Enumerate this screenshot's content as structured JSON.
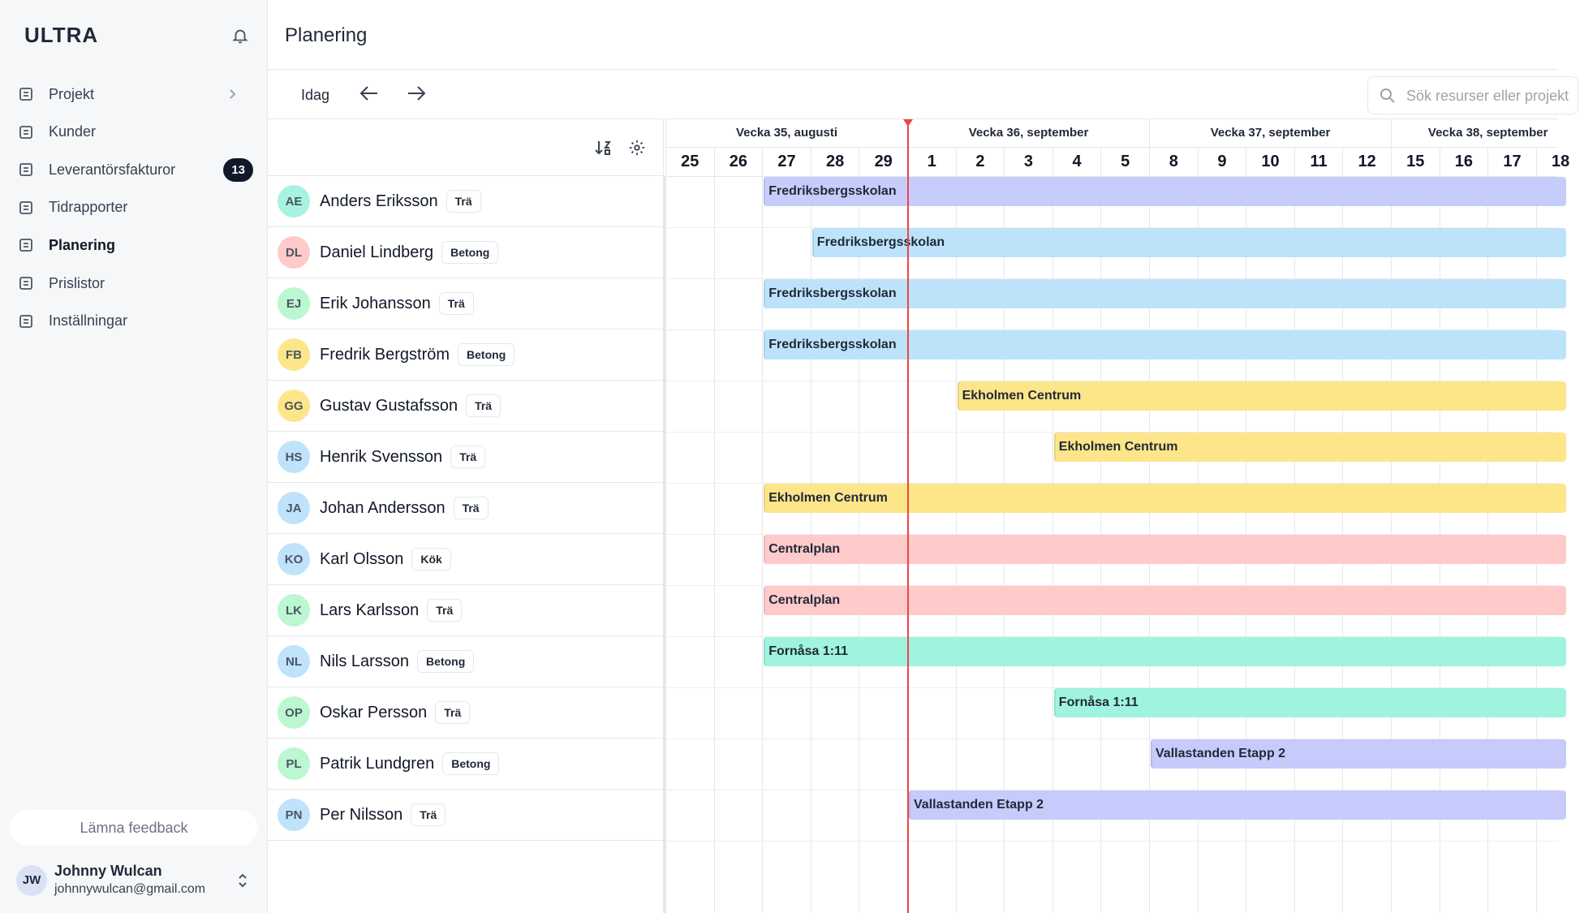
{
  "sidebar": {
    "logo": "ULTRA",
    "nav": [
      {
        "label": "Projekt"
      },
      {
        "label": "Kunder"
      },
      {
        "label": "Leverantörsfakturor",
        "badge": 13
      },
      {
        "label": "Tidrapporter"
      },
      {
        "label": "Planering",
        "active": true
      },
      {
        "label": "Prislistor"
      },
      {
        "label": "Inställningar"
      }
    ],
    "feedback": "Lämna feedback",
    "user": {
      "initials": "JW",
      "name": "Johnny Wulcan",
      "email": "johnnywulcan@gmail.com"
    }
  },
  "header": {
    "title": "Planering"
  },
  "toolbar": {
    "today": "Idag",
    "search_placeholder": "Sök resurser eller projekt"
  },
  "timeline": {
    "today": 1,
    "weeks": [
      {
        "label": "Vecka 35, augusti",
        "days": [
          25,
          26,
          27,
          28,
          29
        ]
      },
      {
        "label": "Vecka 36, september",
        "days": [
          1,
          2,
          3,
          4,
          5
        ]
      },
      {
        "label": "Vecka 37, september",
        "days": [
          8,
          9,
          10,
          11,
          12
        ]
      },
      {
        "label": "Vecka 38, september",
        "days": [
          15,
          16,
          17,
          18
        ]
      }
    ]
  },
  "resources": [
    {
      "initials": "AE",
      "name": "Anders Eriksson",
      "tag": "Trä",
      "avatar_color": "#a7f3e0",
      "booking": {
        "project": "Fredriksbergsskolan",
        "start": 27,
        "color": "#c7cdfa"
      }
    },
    {
      "initials": "DL",
      "name": "Daniel Lindberg",
      "tag": "Betong",
      "avatar_color": "#fecaca",
      "booking": {
        "project": "Fredriksbergsskolan",
        "start": 28,
        "color": "#bde3fb"
      }
    },
    {
      "initials": "EJ",
      "name": "Erik Johansson",
      "tag": "Trä",
      "avatar_color": "#bbf7d0",
      "booking": {
        "project": "Fredriksbergsskolan",
        "start": 27,
        "color": "#bde3fb"
      }
    },
    {
      "initials": "FB",
      "name": "Fredrik Bergström",
      "tag": "Betong",
      "avatar_color": "#fde68a",
      "booking": {
        "project": "Fredriksbergsskolan",
        "start": 27,
        "color": "#bde3fb"
      }
    },
    {
      "initials": "GG",
      "name": "Gustav Gustafsson",
      "tag": "Trä",
      "avatar_color": "#fde68a",
      "booking": {
        "project": "Ekholmen Centrum",
        "start": 2,
        "color": "#fde58a"
      }
    },
    {
      "initials": "HS",
      "name": "Henrik Svensson",
      "tag": "Trä",
      "avatar_color": "#bfe3fb",
      "booking": {
        "project": "Ekholmen Centrum",
        "start": 4,
        "color": "#fde58a"
      }
    },
    {
      "initials": "JA",
      "name": "Johan Andersson",
      "tag": "Trä",
      "avatar_color": "#bfe3fb",
      "booking": {
        "project": "Ekholmen Centrum",
        "start": 27,
        "color": "#fde58a"
      }
    },
    {
      "initials": "KO",
      "name": "Karl Olsson",
      "tag": "Kök",
      "avatar_color": "#bfe3fb",
      "booking": {
        "project": "Centralplan",
        "start": 27,
        "color": "#fecaca"
      }
    },
    {
      "initials": "LK",
      "name": "Lars Karlsson",
      "tag": "Trä",
      "avatar_color": "#bbf7d0",
      "booking": {
        "project": "Centralplan",
        "start": 27,
        "color": "#fecaca"
      }
    },
    {
      "initials": "NL",
      "name": "Nils Larsson",
      "tag": "Betong",
      "avatar_color": "#bfe3fb",
      "booking": {
        "project": "Fornåsa 1:11",
        "start": 27,
        "color": "#9ff3df"
      }
    },
    {
      "initials": "OP",
      "name": "Oskar Persson",
      "tag": "Trä",
      "avatar_color": "#bbf7d0",
      "booking": {
        "project": "Fornåsa 1:11",
        "start": 4,
        "color": "#9ff3df"
      }
    },
    {
      "initials": "PL",
      "name": "Patrik Lundgren",
      "tag": "Betong",
      "avatar_color": "#bbf7d0",
      "booking": {
        "project": "Vallastanden Etapp 2",
        "start": 8,
        "color": "#c7cbfb"
      }
    },
    {
      "initials": "PN",
      "name": "Per Nilsson",
      "tag": "Trä",
      "avatar_color": "#bfe3fb",
      "booking": {
        "project": "Vallastanden Etapp 2",
        "start": 1,
        "color": "#c7cbfb"
      }
    }
  ]
}
